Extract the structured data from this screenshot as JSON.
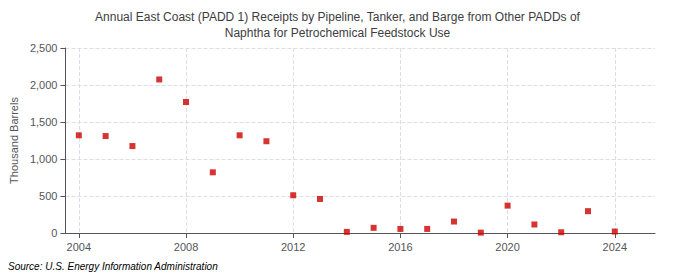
{
  "chart_data": {
    "type": "scatter",
    "title": "Annual East Coast (PADD 1) Receipts by Pipeline, Tanker, and Barge from Other PADDs of\nNaphtha for Petrochemical Feedstock Use",
    "ylabel": "Thousand Barrels",
    "annotation": "Source: U.S. Energy Information Administration",
    "x": [
      2004,
      2005,
      2006,
      2007,
      2008,
      2009,
      2010,
      2011,
      2012,
      2013,
      2014,
      2015,
      2016,
      2017,
      2018,
      2019,
      2020,
      2021,
      2022,
      2023,
      2024
    ],
    "values": [
      1320,
      1310,
      1175,
      2075,
      1770,
      820,
      1320,
      1240,
      510,
      460,
      15,
      70,
      55,
      55,
      155,
      5,
      370,
      115,
      10,
      295,
      20
    ],
    "color": "#cc0000",
    "marker": "square",
    "xlim": [
      2003.5,
      2025.5
    ],
    "xticks": [
      2004,
      2008,
      2012,
      2016,
      2020,
      2024
    ],
    "ylim": [
      0,
      2500
    ],
    "yticks": [
      0,
      500,
      {
        "value": 1000,
        "label": "1,000"
      },
      {
        "value": 1500,
        "label": "1,500"
      },
      {
        "value": 2000,
        "label": "2,000"
      },
      {
        "value": 2500,
        "label": "2,500"
      }
    ],
    "grid": true
  }
}
